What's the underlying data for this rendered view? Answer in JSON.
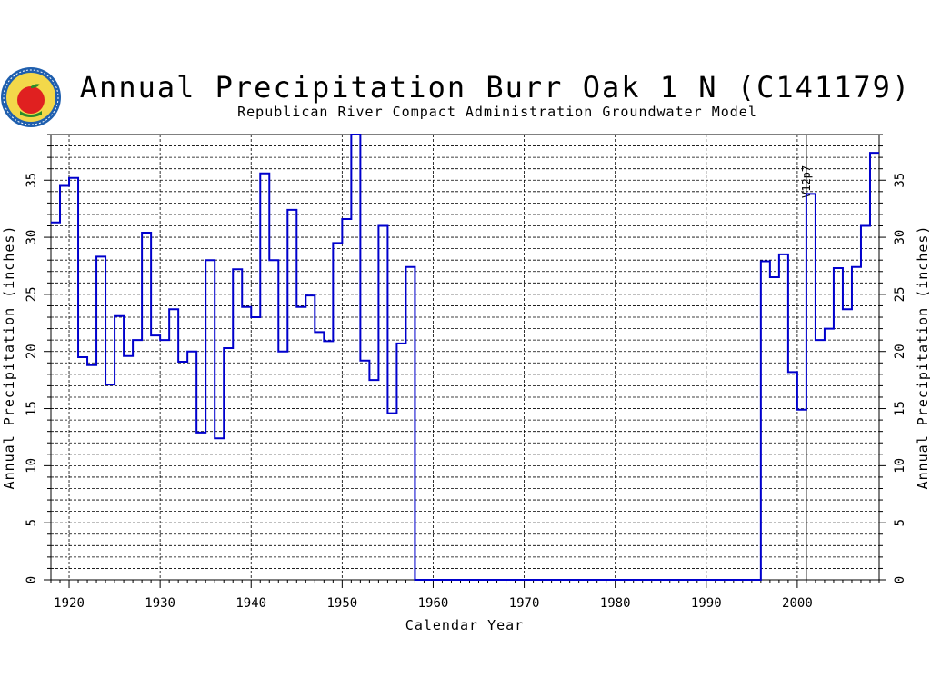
{
  "chart_data": {
    "type": "line",
    "title": "Annual Precipitation Burr Oak 1 N (C141179)",
    "subtitle": "Republican River Compact Administration Groundwater Model",
    "xlabel": "Calendar Year",
    "ylabel": "Annual Precipitation (inches)",
    "xlim": [
      1918,
      2009
    ],
    "ylim": [
      0,
      39
    ],
    "x_ticks": [
      1920,
      1930,
      1940,
      1950,
      1960,
      1970,
      1980,
      1990,
      2000
    ],
    "y_ticks": [
      0,
      5,
      10,
      15,
      20,
      25,
      30,
      35
    ],
    "grid": true,
    "series": [
      {
        "color_early": "#0000cc",
        "color_estimated": "#0000cc",
        "points": [
          {
            "x": 1918,
            "y": 31.3
          },
          {
            "x": 1919,
            "y": 34.5
          },
          {
            "x": 1920,
            "y": 35.2
          },
          {
            "x": 1921,
            "y": 19.5
          },
          {
            "x": 1922,
            "y": 18.8
          },
          {
            "x": 1923,
            "y": 28.3
          },
          {
            "x": 1924,
            "y": 17.1
          },
          {
            "x": 1925,
            "y": 23.1
          },
          {
            "x": 1926,
            "y": 19.6
          },
          {
            "x": 1927,
            "y": 21.0
          },
          {
            "x": 1928,
            "y": 30.4
          },
          {
            "x": 1929,
            "y": 21.4
          },
          {
            "x": 1930,
            "y": 21.0
          },
          {
            "x": 1931,
            "y": 23.7
          },
          {
            "x": 1932,
            "y": 19.1
          },
          {
            "x": 1933,
            "y": 20.0
          },
          {
            "x": 1934,
            "y": 12.9
          },
          {
            "x": 1935,
            "y": 28.0
          },
          {
            "x": 1936,
            "y": 12.4
          },
          {
            "x": 1937,
            "y": 20.3
          },
          {
            "x": 1938,
            "y": 27.2
          },
          {
            "x": 1939,
            "y": 23.9
          },
          {
            "x": 1940,
            "y": 23.0
          },
          {
            "x": 1941,
            "y": 35.6
          },
          {
            "x": 1942,
            "y": 28.0
          },
          {
            "x": 1943,
            "y": 20.0
          },
          {
            "x": 1944,
            "y": 32.4
          },
          {
            "x": 1945,
            "y": 23.9
          },
          {
            "x": 1946,
            "y": 24.9
          },
          {
            "x": 1947,
            "y": 21.7
          },
          {
            "x": 1948,
            "y": 20.9
          },
          {
            "x": 1949,
            "y": 29.5
          },
          {
            "x": 1950,
            "y": 31.6
          },
          {
            "x": 1951,
            "y": 39.0
          },
          {
            "x": 1952,
            "y": 19.2
          },
          {
            "x": 1953,
            "y": 17.5
          },
          {
            "x": 1954,
            "y": 31.0
          },
          {
            "x": 1955,
            "y": 14.6
          },
          {
            "x": 1956,
            "y": 20.7
          },
          {
            "x": 1957,
            "y": 27.4
          },
          {
            "x": 1958,
            "y": 0
          },
          {
            "x": 1995,
            "y": 0
          },
          {
            "x": 1996,
            "y": 27.9
          },
          {
            "x": 1997,
            "y": 26.5
          },
          {
            "x": 1998,
            "y": 28.5
          },
          {
            "x": 1999,
            "y": 18.2
          },
          {
            "x": 2000,
            "y": 14.9
          },
          {
            "x": 2001,
            "y": 33.8
          },
          {
            "x": 2002,
            "y": 21.0
          },
          {
            "x": 2003,
            "y": 22.0
          },
          {
            "x": 2004,
            "y": 27.3
          },
          {
            "x": 2005,
            "y": 23.7
          },
          {
            "x": 2006,
            "y": 27.4
          },
          {
            "x": 2007,
            "y": 31.0
          },
          {
            "x": 2008,
            "y": 37.4
          }
        ]
      }
    ],
    "annotations": [
      {
        "text": "V12p7",
        "x": 2001
      }
    ]
  }
}
